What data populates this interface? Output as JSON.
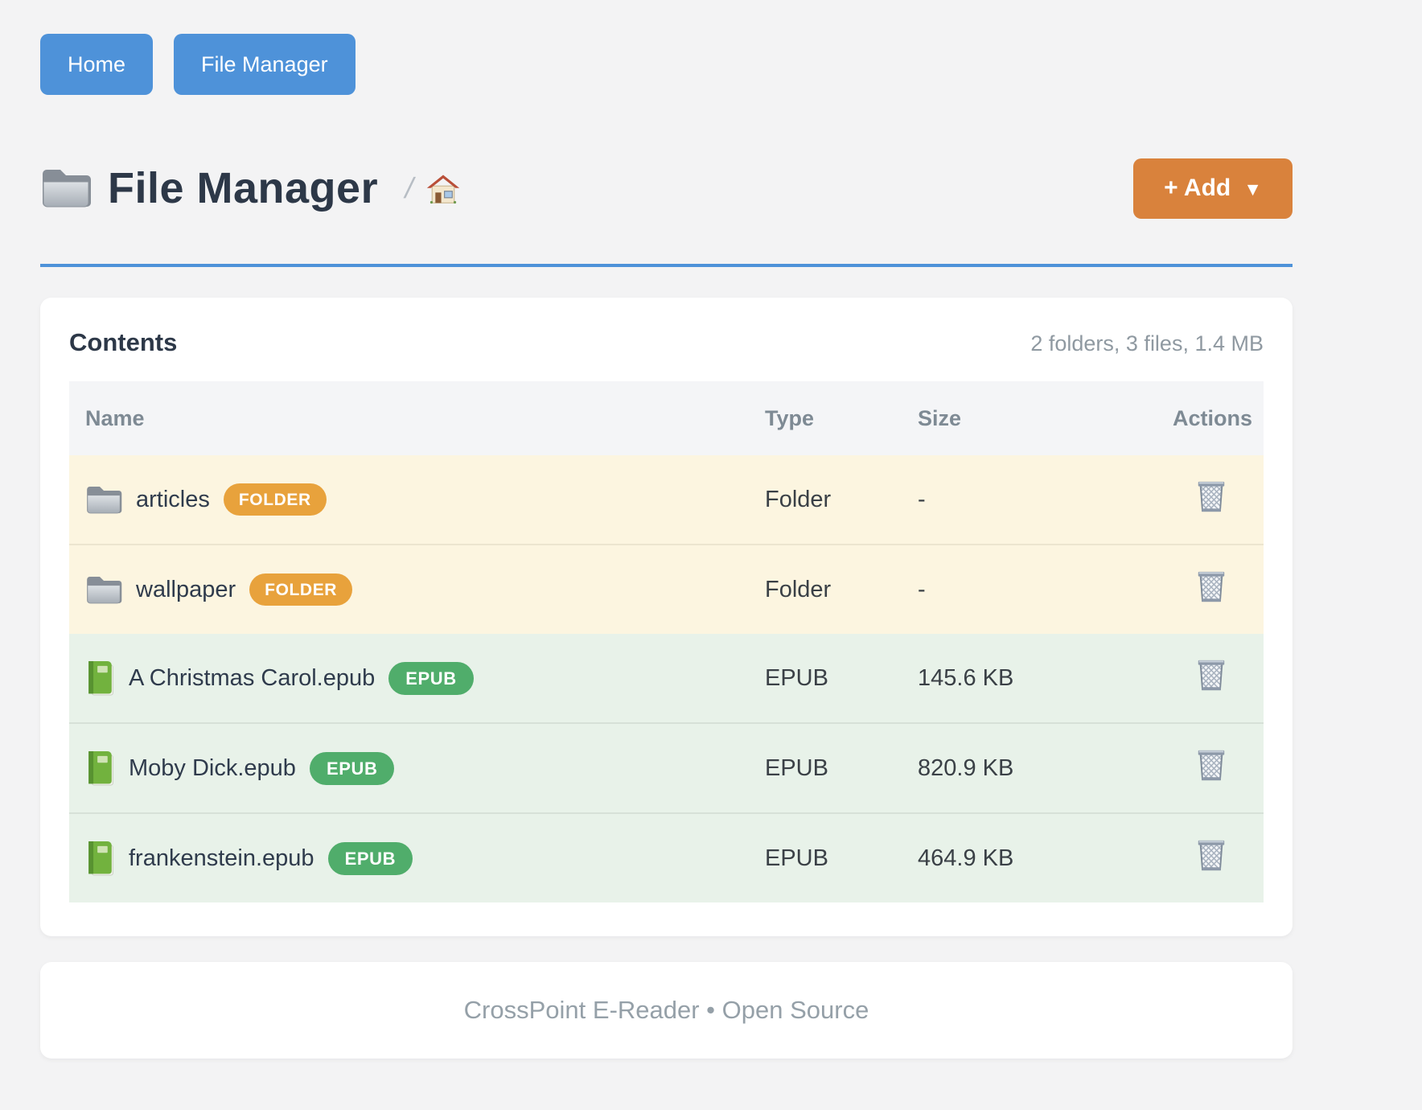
{
  "nav": {
    "items": [
      {
        "label": "Home"
      },
      {
        "label": "File Manager"
      }
    ]
  },
  "header": {
    "title": "File Manager",
    "breadcrumb": {
      "separator": "/",
      "home_icon": "house-icon"
    },
    "add_button": {
      "label": "+ Add",
      "caret": "▼"
    }
  },
  "contents": {
    "title": "Contents",
    "summary": "2 folders, 3 files, 1.4 MB",
    "table": {
      "columns": [
        "Name",
        "Type",
        "Size",
        "Actions"
      ],
      "rows": [
        {
          "name": "articles",
          "kind": "folder",
          "badge": "FOLDER",
          "type": "Folder",
          "size": "-",
          "icon": "folder-icon",
          "action_icon": "trash-icon"
        },
        {
          "name": "wallpaper",
          "kind": "folder",
          "badge": "FOLDER",
          "type": "Folder",
          "size": "-",
          "icon": "folder-icon",
          "action_icon": "trash-icon"
        },
        {
          "name": "A Christmas Carol.epub",
          "kind": "epub",
          "badge": "EPUB",
          "type": "EPUB",
          "size": "145.6 KB",
          "icon": "book-icon",
          "action_icon": "trash-icon"
        },
        {
          "name": "Moby Dick.epub",
          "kind": "epub",
          "badge": "EPUB",
          "type": "EPUB",
          "size": "820.9 KB",
          "icon": "book-icon",
          "action_icon": "trash-icon"
        },
        {
          "name": "frankenstein.epub",
          "kind": "epub",
          "badge": "EPUB",
          "type": "EPUB",
          "size": "464.9 KB",
          "icon": "book-icon",
          "action_icon": "trash-icon"
        }
      ]
    }
  },
  "footer": {
    "text": "CrossPoint E-Reader • Open Source"
  },
  "colors": {
    "nav_button": "#4e92d9",
    "accent_rule": "#4e92d9",
    "add_button": "#d9823c",
    "folder_badge": "#e8a23c",
    "epub_badge": "#50ad6b",
    "folder_row_bg": "#fcf5e0",
    "epub_row_bg": "#e8f2e9",
    "table_header_bg": "#f4f5f7",
    "page_bg": "#f3f3f4"
  }
}
